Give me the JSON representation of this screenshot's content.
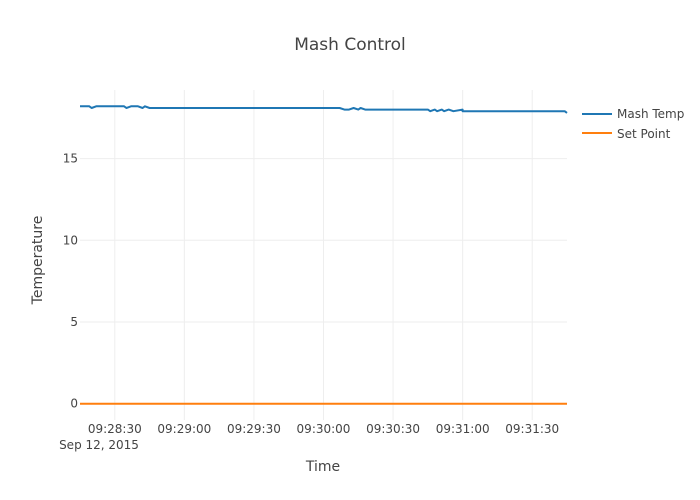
{
  "chart_data": {
    "type": "line",
    "title": "Mash Control",
    "xlabel": "Time",
    "ylabel": "Temperature",
    "x_date_label": "Sep 12, 2015",
    "x_start": "09:28:15",
    "x_end": "09:31:45",
    "x_ticks": [
      "09:28:30",
      "09:29:00",
      "09:29:30",
      "09:30:00",
      "09:30:30",
      "09:31:00",
      "09:31:30"
    ],
    "y_ticks": [
      0,
      5,
      10,
      15
    ],
    "ylim": [
      -1,
      19.2
    ],
    "grid": true,
    "legend_position": "top-right",
    "series": [
      {
        "name": "Mash Temp",
        "color": "#1f77b4",
        "x": [
          "09:28:15",
          "09:28:19",
          "09:28:20",
          "09:28:22",
          "09:28:25",
          "09:28:30",
          "09:28:34",
          "09:28:35",
          "09:28:37",
          "09:28:40",
          "09:28:42",
          "09:28:43",
          "09:28:45",
          "09:29:00",
          "09:29:30",
          "09:30:00",
          "09:30:07",
          "09:30:09",
          "09:30:11",
          "09:30:13",
          "09:30:15",
          "09:30:16",
          "09:30:18",
          "09:30:30",
          "09:31:00",
          "09:30:45",
          "09:30:46",
          "09:30:48",
          "09:30:49",
          "09:30:51",
          "09:30:52",
          "09:30:54",
          "09:30:56",
          "09:31:00",
          "09:31:30",
          "09:31:44",
          "09:31:45"
        ],
        "y": [
          18.2,
          18.2,
          18.1,
          18.2,
          18.2,
          18.2,
          18.2,
          18.1,
          18.2,
          18.2,
          18.1,
          18.2,
          18.1,
          18.1,
          18.1,
          18.1,
          18.1,
          18.0,
          18.0,
          18.1,
          18.0,
          18.1,
          18.0,
          18.0,
          18.0,
          18.0,
          17.9,
          18.0,
          17.9,
          18.0,
          17.9,
          18.0,
          17.9,
          17.9,
          17.9,
          17.9,
          17.8
        ]
      },
      {
        "name": "Set Point",
        "color": "#ff7f0e",
        "x": [
          "09:28:15",
          "09:31:45"
        ],
        "y": [
          0,
          0
        ]
      }
    ]
  }
}
